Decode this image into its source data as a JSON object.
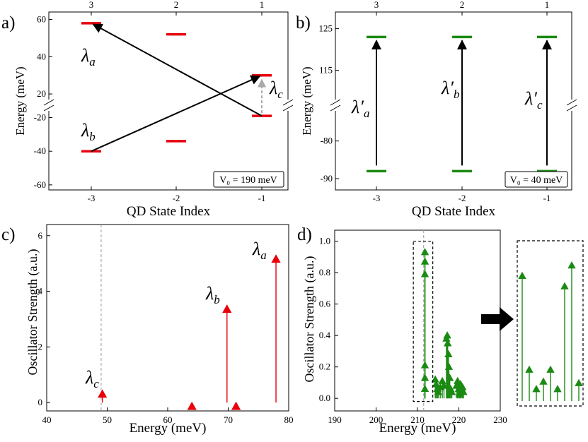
{
  "colors": {
    "red": "#e8000b",
    "green": "#1a8a12",
    "black": "#000000",
    "gray": "#aaaaaa"
  },
  "panel_labels": [
    "a)",
    "b)",
    "c)",
    "d)"
  ],
  "chart_data": [
    {
      "id": "a",
      "type": "energy-level-diagram",
      "xlabel": "QD State Index",
      "ylabel": "Energy (meV)",
      "xticks_bottom": [
        "-3",
        "-2",
        "-1"
      ],
      "xticks_top": [
        "3",
        "2",
        "1"
      ],
      "y_upper": {
        "ticks": [
          20,
          40,
          60
        ],
        "range": [
          17,
          64
        ]
      },
      "y_lower": {
        "ticks": [
          -20,
          -40,
          -60
        ],
        "range": [
          -63,
          -16
        ]
      },
      "axis_break": true,
      "legend_box": "V₀ = 190 meV",
      "levels": [
        {
          "x": -3,
          "energy": 58,
          "color": "red"
        },
        {
          "x": -2,
          "energy": 52,
          "color": "red"
        },
        {
          "x": -1,
          "energy": 30,
          "color": "red"
        },
        {
          "x": -3,
          "energy": -40,
          "color": "red"
        },
        {
          "x": -2,
          "energy": -34,
          "color": "red"
        },
        {
          "x": -1,
          "energy": -19,
          "color": "red"
        }
      ],
      "transitions": [
        {
          "name": "λa",
          "from": [
            -1,
            -19
          ],
          "to": [
            -3,
            58
          ],
          "style": "solid"
        },
        {
          "name": "λb",
          "from": [
            -3,
            -40
          ],
          "to": [
            -1,
            30
          ],
          "style": "solid"
        },
        {
          "name": "λc",
          "from": [
            -1,
            -19
          ],
          "to": [
            -1,
            30
          ],
          "style": "dashed"
        }
      ],
      "annotations": [
        {
          "base": "λ",
          "sub": "a"
        },
        {
          "base": "λ",
          "sub": "b"
        },
        {
          "base": "λ",
          "sub": "c"
        }
      ]
    },
    {
      "id": "b",
      "type": "energy-level-diagram",
      "xlabel": "QD State Index",
      "ylabel": "Energy (meV)",
      "xticks_bottom": [
        "-3",
        "-2",
        "-1"
      ],
      "xticks_top": [
        "3",
        "2",
        "1"
      ],
      "y_upper": {
        "ticks": [
          115,
          125
        ],
        "range": [
          108,
          129
        ]
      },
      "y_lower": {
        "ticks": [
          -80,
          -90
        ],
        "range": [
          -93,
          -72
        ]
      },
      "axis_break": true,
      "legend_box": "V₀ = 40 meV",
      "levels": [
        {
          "x": -3,
          "energy": 123,
          "color": "green"
        },
        {
          "x": -2,
          "energy": 123,
          "color": "green"
        },
        {
          "x": -1,
          "energy": 123,
          "color": "green"
        },
        {
          "x": -3,
          "energy": -88,
          "color": "green"
        },
        {
          "x": -2,
          "energy": -88,
          "color": "green"
        },
        {
          "x": -1,
          "energy": -88,
          "color": "green"
        }
      ],
      "transitions": [
        {
          "name": "λ′a",
          "from": [
            -3,
            -88
          ],
          "to": [
            -3,
            123
          ]
        },
        {
          "name": "λ′b",
          "from": [
            -2,
            -88
          ],
          "to": [
            -2,
            123
          ]
        },
        {
          "name": "λ′c",
          "from": [
            -1,
            -88
          ],
          "to": [
            -1,
            123
          ]
        }
      ],
      "annotations": [
        {
          "base": "λ′",
          "sub": "a"
        },
        {
          "base": "λ′",
          "sub": "b"
        },
        {
          "base": "λ′",
          "sub": "c"
        }
      ]
    },
    {
      "id": "c",
      "type": "stem",
      "xlabel": "Energy (meV)",
      "ylabel": "Oscillator Strength (a.u.)",
      "xlim": [
        40,
        80
      ],
      "ylim": [
        -0.3,
        6.4
      ],
      "xticks": [
        40,
        50,
        60,
        70,
        80
      ],
      "yticks": [
        0,
        2,
        4,
        6
      ],
      "vline": 49,
      "points": [
        {
          "x": 49.2,
          "y": 0.3
        },
        {
          "x": 64.0,
          "y": -0.14
        },
        {
          "x": 69.8,
          "y": 3.35
        },
        {
          "x": 71.3,
          "y": -0.14
        },
        {
          "x": 77.9,
          "y": 5.15
        }
      ],
      "annotations": [
        {
          "base": "λ",
          "sub": "a"
        },
        {
          "base": "λ",
          "sub": "b"
        },
        {
          "base": "λ",
          "sub": "c"
        }
      ]
    },
    {
      "id": "d",
      "type": "stem",
      "xlabel": "Energy (meV)",
      "ylabel": "Oscillator Strength (a.u.)",
      "xlim": [
        190,
        230
      ],
      "ylim": [
        -0.08,
        1.07
      ],
      "xticks": [
        190,
        200,
        210,
        220,
        230
      ],
      "yticks": [
        0.0,
        0.2,
        0.4,
        0.6,
        0.8,
        1.0
      ],
      "vline": 211.5,
      "points": [
        {
          "x": 211.8,
          "y": 0.93
        },
        {
          "x": 211.8,
          "y": 0.87
        },
        {
          "x": 211.8,
          "y": 0.79
        },
        {
          "x": 211.8,
          "y": 0.21
        },
        {
          "x": 211.8,
          "y": 0.13
        },
        {
          "x": 211.8,
          "y": 0.06
        },
        {
          "x": 214.3,
          "y": 0.12
        },
        {
          "x": 214.5,
          "y": 0.09
        },
        {
          "x": 214.8,
          "y": 0.06
        },
        {
          "x": 215.0,
          "y": 0.04
        },
        {
          "x": 215.5,
          "y": 0.07
        },
        {
          "x": 216.0,
          "y": 0.11
        },
        {
          "x": 216.4,
          "y": 0.08
        },
        {
          "x": 217.0,
          "y": 0.38
        },
        {
          "x": 217.2,
          "y": 0.4
        },
        {
          "x": 217.3,
          "y": 0.35
        },
        {
          "x": 217.5,
          "y": 0.28
        },
        {
          "x": 217.6,
          "y": 0.2
        },
        {
          "x": 217.8,
          "y": 0.13
        },
        {
          "x": 218.0,
          "y": 0.06
        },
        {
          "x": 218.3,
          "y": 0.04
        },
        {
          "x": 219.4,
          "y": 0.08
        },
        {
          "x": 219.7,
          "y": 0.11
        },
        {
          "x": 220.0,
          "y": 0.06
        },
        {
          "x": 220.2,
          "y": 0.03
        },
        {
          "x": 220.4,
          "y": 0.09
        },
        {
          "x": 220.6,
          "y": 0.05
        },
        {
          "x": 220.9,
          "y": 0.07
        },
        {
          "x": 221.1,
          "y": 0.04
        }
      ],
      "zoom_box": {
        "x_range": [
          209,
          213.7
        ],
        "y_range": [
          -0.02,
          1.0
        ]
      },
      "inset": {
        "stems": [
          0.84,
          0.21,
          0.08,
          0.13,
          0.21,
          0.08,
          0.77,
          0.91,
          0.12
        ]
      }
    }
  ]
}
